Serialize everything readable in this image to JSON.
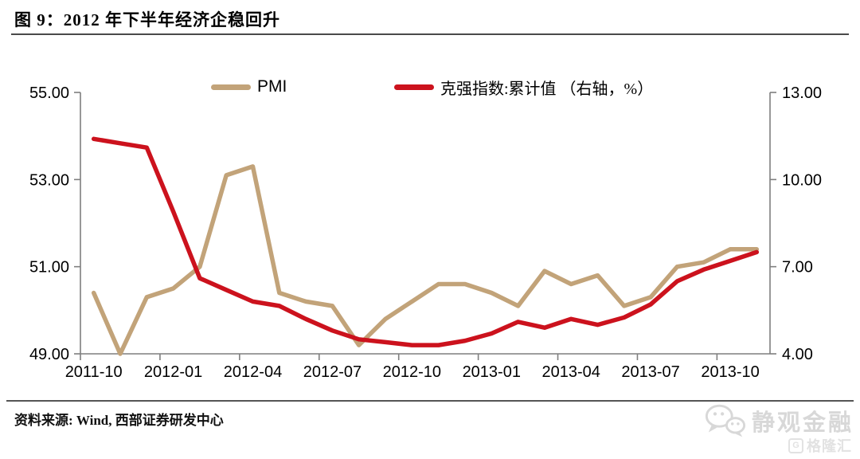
{
  "header": {
    "title": "图 9：2012 年下半年经济企稳回升"
  },
  "footer": {
    "source_text": "资料来源: Wind, 西部证券研发中心",
    "watermark_wechat": "静观金融",
    "watermark_gelonghui": "格隆汇",
    "watermark_color": "#d8d8d8"
  },
  "chart_data": {
    "type": "line",
    "title": "图 9：2012 年下半年经济企稳回升",
    "legend_position": "top",
    "grid": false,
    "x": [
      "2011-10",
      "2011-11",
      "2011-12",
      "2012-01",
      "2012-02",
      "2012-03",
      "2012-04",
      "2012-05",
      "2012-06",
      "2012-07",
      "2012-08",
      "2012-09",
      "2012-10",
      "2012-11",
      "2012-12",
      "2013-01",
      "2013-02",
      "2013-03",
      "2013-04",
      "2013-05",
      "2013-06",
      "2013-07",
      "2013-08",
      "2013-09",
      "2013-10",
      "2013-11"
    ],
    "x_tick_labels": [
      "2011-10",
      "2012-01",
      "2012-04",
      "2012-07",
      "2012-10",
      "2013-01",
      "2013-04",
      "2013-07",
      "2013-10"
    ],
    "series": [
      {
        "name": "PMI",
        "axis": "left",
        "color": "#c2a379",
        "values": [
          50.4,
          49.0,
          50.3,
          50.5,
          51.0,
          53.1,
          53.3,
          50.4,
          50.2,
          50.1,
          49.2,
          49.8,
          50.2,
          50.6,
          50.6,
          50.4,
          50.1,
          50.9,
          50.6,
          50.8,
          50.1,
          50.3,
          51.0,
          51.1,
          51.4,
          51.4
        ]
      },
      {
        "name": "克强指数:累计值 （右轴，%）",
        "axis": "right",
        "color": "#cc121d",
        "values": [
          11.4,
          11.25,
          11.1,
          8.9,
          6.6,
          6.2,
          5.8,
          5.65,
          5.2,
          4.8,
          4.5,
          4.4,
          4.3,
          4.3,
          4.45,
          4.7,
          5.1,
          4.9,
          5.2,
          5.0,
          5.25,
          5.7,
          6.5,
          6.9,
          7.2,
          7.5
        ]
      }
    ],
    "left_axis": {
      "min": 49,
      "max": 55,
      "ticks": [
        "49.00",
        "51.00",
        "53.00",
        "55.00"
      ]
    },
    "right_axis": {
      "min": 4,
      "max": 13,
      "ticks": [
        "4.00",
        "7.00",
        "10.00",
        "13.00"
      ]
    }
  }
}
